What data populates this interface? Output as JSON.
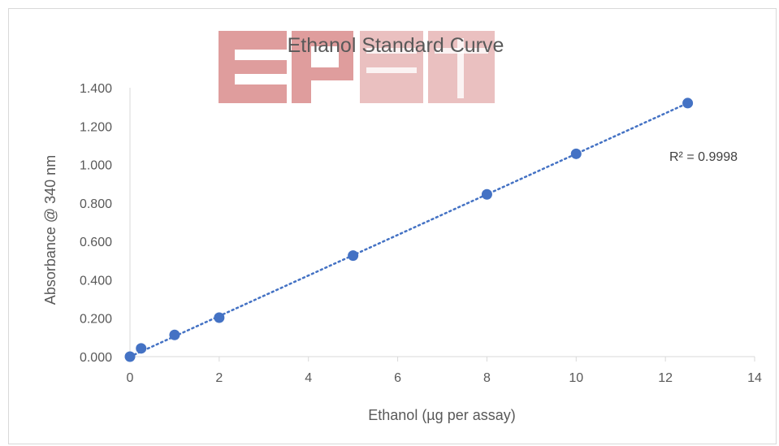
{
  "watermark": {
    "text": "EP 萬和"
  },
  "chart_data": {
    "type": "scatter",
    "title": "Ethanol Standard Curve",
    "xlabel": "Ethanol (µg per assay)",
    "ylabel": "Absorbance @ 340 nm",
    "xlim": [
      0,
      14
    ],
    "ylim": [
      0,
      1.4
    ],
    "x_ticks": [
      "0",
      "2",
      "4",
      "6",
      "8",
      "10",
      "12",
      "14"
    ],
    "y_ticks": [
      "0.000",
      "0.200",
      "0.400",
      "0.600",
      "0.800",
      "1.000",
      "1.200",
      "1.400"
    ],
    "grid": false,
    "legend": "none",
    "series": [
      {
        "x": [
          0,
          0.25,
          1,
          2,
          5,
          8,
          10,
          12.5
        ],
        "y": [
          0.0,
          0.043,
          0.113,
          0.203,
          0.526,
          0.845,
          1.056,
          1.32
        ],
        "color": "#4472C4"
      }
    ],
    "trendline": {
      "type": "linear",
      "style": "dotted",
      "color": "#4472C4",
      "slope": 0.1056,
      "intercept": 0.0
    },
    "annotations": [
      {
        "text": "R² = 0.9998"
      }
    ]
  }
}
